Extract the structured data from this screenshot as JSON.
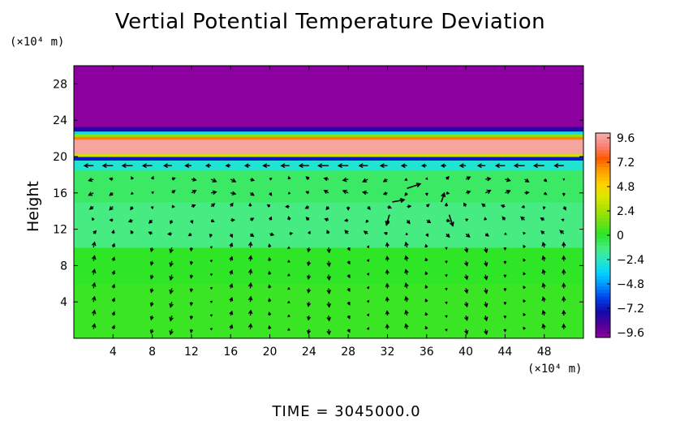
{
  "chart_data": {
    "type": "heatmap",
    "title": "Vertial Potential Temperature Deviation",
    "ylabel": "Height",
    "xlabel": "",
    "x_unit": "(×10⁴ m)",
    "y_unit": "(×10⁴ m)",
    "xlim": [
      0,
      52
    ],
    "ylim": [
      0,
      30
    ],
    "x_ticks": [
      4,
      8,
      12,
      16,
      20,
      24,
      28,
      32,
      36,
      40,
      44,
      48
    ],
    "y_ticks": [
      4,
      8,
      12,
      16,
      20,
      24,
      28
    ],
    "colorbar": {
      "range": [
        -9.6,
        9.6
      ],
      "ticks": [
        "9.6",
        "7.2",
        "4.8",
        "2.4",
        "0",
        "−2.4",
        "−4.8",
        "−7.2",
        "−9.6"
      ]
    },
    "bands": [
      {
        "y0": 0,
        "y1": 6,
        "value": 0.3
      },
      {
        "y0": 6,
        "y1": 10,
        "value": 0.1
      },
      {
        "y0": 10,
        "y1": 15,
        "value": -1.2
      },
      {
        "y0": 15,
        "y1": 18.5,
        "value": -0.8
      },
      {
        "y0": 18.5,
        "y1": 19.6,
        "value": -2.6
      },
      {
        "y0": 19.6,
        "y1": 20.0,
        "value": -6.8
      },
      {
        "y0": 20.0,
        "y1": 20.3,
        "value": 3.2
      },
      {
        "y0": 20.3,
        "y1": 21.9,
        "value": 9.3
      },
      {
        "y0": 21.9,
        "y1": 22.2,
        "value": 6.5
      },
      {
        "y0": 22.2,
        "y1": 22.5,
        "value": 2.0
      },
      {
        "y0": 22.5,
        "y1": 22.8,
        "value": -3.0
      },
      {
        "y0": 22.8,
        "y1": 23.3,
        "value": -7.6
      },
      {
        "y0": 23.3,
        "y1": 30,
        "value": -9.6
      }
    ],
    "vectors": [
      {
        "x": 32.5,
        "y": 15.0,
        "u": 1.6,
        "v": 0.3
      },
      {
        "x": 34.0,
        "y": 16.5,
        "u": 1.8,
        "v": 0.6
      },
      {
        "x": 32.2,
        "y": 13.6,
        "u": -0.4,
        "v": -1.4
      },
      {
        "x": 38.3,
        "y": 13.6,
        "u": 0.5,
        "v": -1.5
      },
      {
        "x": 37.5,
        "y": 15.0,
        "u": 0.4,
        "v": 1.2
      }
    ]
  },
  "footer": {
    "time_text": "TIME  =  3045000.0"
  }
}
